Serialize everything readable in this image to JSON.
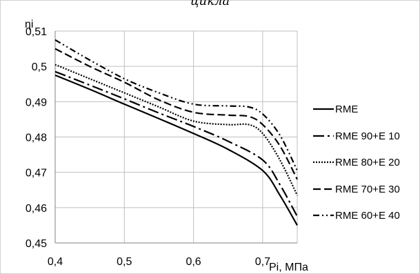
{
  "chart_data": {
    "type": "line",
    "title": "цикла",
    "ylabel": "ηi",
    "xlabel": "Pi, МПа",
    "xlim": [
      0.4,
      0.75
    ],
    "ylim": [
      0.45,
      0.51
    ],
    "x_ticks": [
      "0,4",
      "0,5",
      "0,6",
      "0,7"
    ],
    "y_ticks": [
      "0,45",
      "0,46",
      "0,47",
      "0,48",
      "0,49",
      "0,5",
      "0,51"
    ],
    "grid": true,
    "legend_position": "right",
    "series": [
      {
        "name": "RME",
        "dash": "solid",
        "x": [
          0.4,
          0.45,
          0.5,
          0.55,
          0.6,
          0.65,
          0.7,
          0.725,
          0.75
        ],
        "y": [
          0.4975,
          0.4935,
          0.4893,
          0.4852,
          0.481,
          0.4765,
          0.4705,
          0.4635,
          0.455
        ]
      },
      {
        "name": "RME 90+E 10",
        "dash": "long-dash-dot",
        "x": [
          0.4,
          0.45,
          0.5,
          0.55,
          0.6,
          0.65,
          0.7,
          0.725,
          0.75
        ],
        "y": [
          0.4985,
          0.4947,
          0.4908,
          0.4868,
          0.483,
          0.4788,
          0.4735,
          0.4665,
          0.4575
        ]
      },
      {
        "name": "RME 80+E 20",
        "dash": "dotted",
        "x": [
          0.4,
          0.45,
          0.5,
          0.55,
          0.6,
          0.65,
          0.68,
          0.7,
          0.725,
          0.75
        ],
        "y": [
          0.5005,
          0.4965,
          0.4925,
          0.4885,
          0.4845,
          0.4835,
          0.4835,
          0.481,
          0.4735,
          0.4635
        ]
      },
      {
        "name": "RME 70+E 30",
        "dash": "long-dash",
        "x": [
          0.4,
          0.45,
          0.5,
          0.55,
          0.6,
          0.65,
          0.68,
          0.7,
          0.725,
          0.75
        ],
        "y": [
          0.505,
          0.5,
          0.4955,
          0.4905,
          0.487,
          0.4862,
          0.4858,
          0.4835,
          0.4775,
          0.468
        ]
      },
      {
        "name": "RME 60+E 40",
        "dash": "dash-dot-dot",
        "x": [
          0.4,
          0.45,
          0.5,
          0.55,
          0.6,
          0.65,
          0.68,
          0.7,
          0.725,
          0.75
        ],
        "y": [
          0.5075,
          0.5018,
          0.4965,
          0.4925,
          0.4893,
          0.4888,
          0.4885,
          0.4865,
          0.4805,
          0.4705
        ]
      }
    ]
  }
}
